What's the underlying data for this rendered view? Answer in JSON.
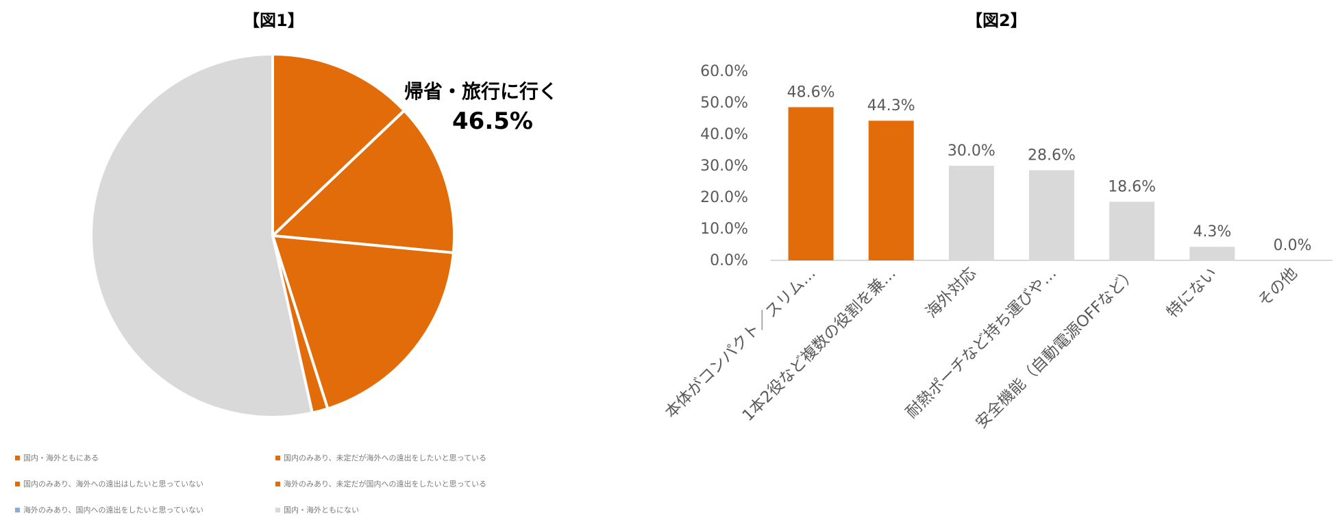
{
  "chart_data": [
    {
      "type": "pie",
      "title": "【図1】",
      "slices": [
        {
          "label": "国内・海外ともにある",
          "value": 12.9,
          "color": "#E36C0A"
        },
        {
          "label": "国内のみあり、未定だが海外への遠出をしたいと思っている",
          "value": 13.6,
          "color": "#E36C0A"
        },
        {
          "label": "国内のみあり、海外への遠出はしたいと思っていない",
          "value": 18.6,
          "color": "#E36C0A"
        },
        {
          "label": "海外のみあり、未定だが国内への遠出をしたいと思っている",
          "value": 1.4,
          "color": "#E36C0A"
        },
        {
          "label": "海外のみあり、国内への遠出をしたいと思っていない",
          "value": 0.0,
          "color": "#8EA9DB"
        },
        {
          "label": "国内・海外ともにない",
          "value": 53.5,
          "color": "#D9D9D9"
        }
      ],
      "annotation": {
        "label": "帰省・旅行に行く",
        "value": "46.5%"
      }
    },
    {
      "type": "bar",
      "title": "【図2】",
      "categories": [
        "本体がコンパクト／スリム…",
        "1本2役など複数の役割を兼…",
        "海外対応",
        "耐熱ポーチなど持ち運びや…",
        "安全機能（自動電源OFFなど）",
        "特にない",
        "その他"
      ],
      "values": [
        48.6,
        44.3,
        30.0,
        28.6,
        18.6,
        4.3,
        0.0
      ],
      "value_labels": [
        "48.6%",
        "44.3%",
        "30.0%",
        "28.6%",
        "18.6%",
        "4.3%",
        "0.0%"
      ],
      "colors": [
        "#E36C0A",
        "#E36C0A",
        "#D9D9D9",
        "#D9D9D9",
        "#D9D9D9",
        "#D9D9D9",
        "#D9D9D9"
      ],
      "yticks": [
        "0.0%",
        "10.0%",
        "20.0%",
        "30.0%",
        "40.0%",
        "50.0%",
        "60.0%"
      ],
      "ylim": [
        0,
        60
      ],
      "xlabel": "",
      "ylabel": ""
    }
  ]
}
